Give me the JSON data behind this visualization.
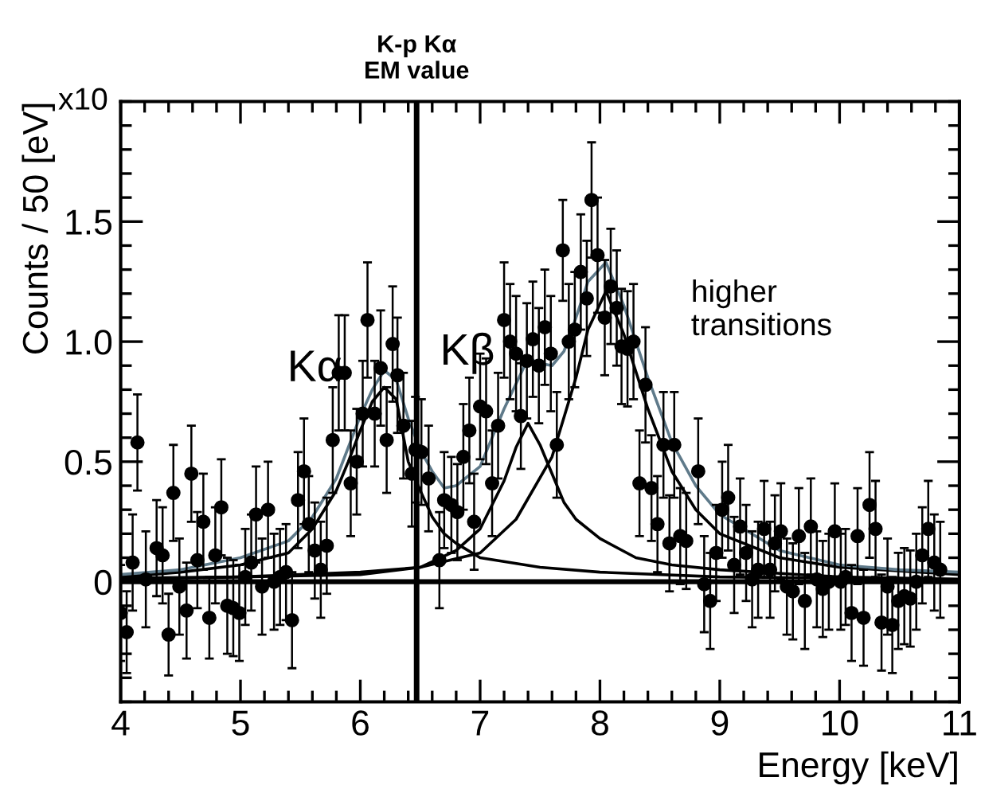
{
  "chart_data": {
    "type": "scatter",
    "xlabel": "Energy [keV]",
    "ylabel": "Counts / 50 [eV]",
    "xlim": [
      4,
      11
    ],
    "ylim": [
      -0.5,
      2.0
    ],
    "xticks": [
      4,
      5,
      6,
      7,
      8,
      9,
      10,
      11
    ],
    "yticks": [
      0,
      0.5,
      {
        "value": 1.0,
        "label": "1.0"
      },
      1.5
    ],
    "grid": false,
    "legend": false,
    "annotations": [
      "x10",
      {
        "text": "Kα",
        "x": 6.2,
        "y": 0.88
      },
      {
        "text": "Kβ",
        "x": 7.4,
        "y": 0.93
      },
      "higher\ntransitions"
    ],
    "ref_lines": [
      {
        "axis": "y",
        "value": 0,
        "color": "#000000"
      },
      {
        "axis": "x",
        "value": 6.47,
        "label": "K-p Kα\nEM value",
        "color": "#000000"
      }
    ],
    "series": [
      {
        "marker": "circle",
        "color": "#000000",
        "x": [
          4.0,
          4.05,
          4.1,
          4.14,
          4.21,
          4.3,
          4.35,
          4.4,
          4.44,
          4.49,
          4.55,
          4.59,
          4.64,
          4.69,
          4.74,
          4.79,
          4.84,
          4.89,
          4.94,
          4.99,
          5.04,
          5.09,
          5.13,
          5.18,
          5.23,
          5.28,
          5.33,
          5.38,
          5.43,
          5.48,
          5.53,
          5.57,
          5.62,
          5.67,
          5.72,
          5.77,
          5.82,
          5.87,
          5.92,
          5.97,
          6.02,
          6.06,
          6.12,
          6.17,
          6.22,
          6.27,
          6.31,
          6.36,
          6.43,
          6.46,
          6.51,
          6.57,
          6.66,
          6.7,
          6.76,
          6.81,
          6.86,
          6.91,
          6.95,
          7.0,
          7.05,
          7.1,
          7.15,
          7.2,
          7.25,
          7.3,
          7.34,
          7.39,
          7.44,
          7.49,
          7.54,
          7.59,
          7.64,
          7.69,
          7.74,
          7.79,
          7.84,
          7.89,
          7.93,
          7.98,
          8.04,
          8.09,
          8.14,
          8.18,
          8.23,
          8.28,
          8.33,
          8.38,
          8.43,
          8.48,
          8.53,
          8.58,
          8.62,
          8.67,
          8.72,
          8.82,
          8.87,
          8.92,
          8.97,
          9.02,
          9.07,
          9.12,
          9.17,
          9.22,
          9.27,
          9.32,
          9.37,
          9.42,
          9.46,
          9.51,
          9.56,
          9.61,
          9.66,
          9.71,
          9.76,
          9.81,
          9.86,
          9.91,
          9.96,
          10.01,
          10.05,
          10.1,
          10.15,
          10.2,
          10.25,
          10.3,
          10.35,
          10.4,
          10.44,
          10.49,
          10.54,
          10.59,
          10.64,
          10.69,
          10.74,
          10.79,
          10.84
        ],
        "values": [
          -0.13,
          -0.21,
          0.08,
          0.58,
          0.01,
          0.14,
          0.11,
          -0.22,
          0.37,
          -0.02,
          -0.12,
          0.45,
          0.09,
          0.25,
          -0.15,
          0.11,
          0.31,
          -0.1,
          -0.11,
          -0.13,
          0.02,
          0.08,
          0.28,
          -0.02,
          0.3,
          0.0,
          0.02,
          0.04,
          -0.16,
          0.34,
          0.46,
          0.24,
          0.13,
          0.05,
          0.15,
          0.59,
          0.87,
          0.87,
          0.41,
          0.5,
          0.7,
          1.09,
          0.7,
          0.89,
          0.59,
          0.99,
          0.86,
          0.65,
          0.45,
          0.55,
          0.54,
          0.43,
          0.09,
          0.34,
          0.32,
          0.29,
          0.52,
          0.63,
          0.25,
          0.73,
          0.71,
          0.41,
          0.65,
          1.09,
          1.0,
          0.95,
          0.69,
          0.92,
          1.01,
          0.9,
          1.06,
          0.95,
          0.57,
          1.38,
          1.0,
          1.05,
          1.29,
          1.18,
          1.59,
          1.36,
          1.1,
          1.23,
          1.14,
          0.98,
          0.97,
          1.0,
          0.41,
          0.82,
          0.39,
          0.24,
          0.57,
          0.16,
          0.57,
          0.19,
          0.17,
          0.46,
          -0.01,
          -0.08,
          0.12,
          0.3,
          0.35,
          0.07,
          0.23,
          0.12,
          0.01,
          0.05,
          0.22,
          0.05,
          0.16,
          0.21,
          -0.02,
          -0.04,
          0.19,
          -0.08,
          0.23,
          0.01,
          -0.03,
          0.0,
          0.21,
          0.0,
          0.02,
          -0.13,
          0.19,
          -0.15,
          0.32,
          0.22,
          -0.17,
          -0.02,
          -0.18,
          -0.08,
          -0.06,
          -0.07,
          0.0,
          0.11,
          0.22,
          0.08,
          0.05
        ],
        "errors": [
          0.2,
          0.17,
          0.2,
          0.2,
          0.2,
          0.2,
          0.2,
          0.17,
          0.2,
          0.2,
          0.2,
          0.2,
          0.2,
          0.2,
          0.17,
          0.2,
          0.2,
          0.2,
          0.2,
          0.2,
          0.2,
          0.2,
          0.2,
          0.2,
          0.2,
          0.2,
          0.2,
          0.2,
          0.2,
          0.2,
          0.22,
          0.2,
          0.2,
          0.2,
          0.2,
          0.22,
          0.24,
          0.24,
          0.22,
          0.22,
          0.22,
          0.24,
          0.22,
          0.24,
          0.22,
          0.24,
          0.24,
          0.22,
          0.22,
          0.22,
          0.22,
          0.22,
          0.2,
          0.2,
          0.2,
          0.2,
          0.22,
          0.22,
          0.2,
          0.22,
          0.22,
          0.22,
          0.22,
          0.24,
          0.24,
          0.24,
          0.22,
          0.24,
          0.24,
          0.24,
          0.24,
          0.24,
          0.22,
          0.21,
          0.24,
          0.24,
          0.24,
          0.24,
          0.24,
          0.24,
          0.24,
          0.24,
          0.24,
          0.24,
          0.24,
          0.24,
          0.22,
          0.24,
          0.22,
          0.2,
          0.22,
          0.2,
          0.22,
          0.2,
          0.2,
          0.22,
          0.2,
          0.2,
          0.2,
          0.2,
          0.22,
          0.2,
          0.2,
          0.2,
          0.2,
          0.2,
          0.2,
          0.2,
          0.2,
          0.2,
          0.2,
          0.2,
          0.2,
          0.2,
          0.2,
          0.2,
          0.2,
          0.2,
          0.2,
          0.2,
          0.2,
          0.2,
          0.2,
          0.2,
          0.22,
          0.2,
          0.2,
          0.2,
          0.2,
          0.2,
          0.2,
          0.2,
          0.2,
          0.2,
          0.2,
          0.2,
          0.2
        ]
      },
      {
        "type": "line",
        "color": "#000000",
        "x": [
          4.0,
          4.5,
          5.0,
          5.4,
          5.6,
          5.8,
          5.9,
          6.0,
          6.1,
          6.2,
          6.3,
          6.4,
          6.5,
          6.6,
          6.7,
          6.8,
          7.0,
          7.5,
          8.0,
          9.0,
          10.0,
          11.0
        ],
        "values": [
          0.02,
          0.04,
          0.07,
          0.12,
          0.22,
          0.38,
          0.5,
          0.63,
          0.75,
          0.81,
          0.76,
          0.5,
          0.38,
          0.27,
          0.2,
          0.16,
          0.1,
          0.06,
          0.04,
          0.02,
          0.015,
          0.01
        ]
      },
      {
        "type": "line",
        "color": "#000000",
        "x": [
          4.0,
          5.0,
          6.0,
          6.5,
          6.8,
          7.0,
          7.2,
          7.3,
          7.4,
          7.5,
          7.6,
          7.7,
          7.8,
          8.0,
          8.3,
          8.6,
          9.0,
          10.0,
          11.0
        ],
        "values": [
          0.015,
          0.02,
          0.03,
          0.06,
          0.13,
          0.22,
          0.42,
          0.56,
          0.66,
          0.57,
          0.45,
          0.33,
          0.26,
          0.18,
          0.1,
          0.07,
          0.05,
          0.02,
          0.01
        ]
      },
      {
        "type": "line",
        "color": "#000000",
        "x": [
          4.0,
          5.0,
          6.0,
          6.5,
          7.0,
          7.3,
          7.6,
          7.8,
          7.9,
          8.05,
          8.2,
          8.4,
          8.6,
          8.8,
          9.0,
          9.5,
          10.0,
          11.0
        ],
        "values": [
          0.01,
          0.02,
          0.04,
          0.06,
          0.12,
          0.26,
          0.52,
          0.85,
          1.05,
          1.21,
          1.03,
          0.72,
          0.46,
          0.3,
          0.2,
          0.1,
          0.06,
          0.03
        ]
      },
      {
        "type": "line",
        "color": "#5f7a8a",
        "x": [
          4.0,
          4.5,
          5.0,
          5.4,
          5.6,
          5.8,
          6.0,
          6.1,
          6.2,
          6.3,
          6.4,
          6.5,
          6.6,
          6.7,
          6.8,
          7.0,
          7.2,
          7.4,
          7.5,
          7.6,
          7.7,
          7.8,
          7.9,
          8.05,
          8.2,
          8.4,
          8.6,
          8.8,
          9.0,
          9.5,
          10.0,
          10.5,
          11.0
        ],
        "values": [
          0.03,
          0.05,
          0.1,
          0.17,
          0.27,
          0.43,
          0.69,
          0.8,
          0.88,
          0.84,
          0.68,
          0.55,
          0.46,
          0.39,
          0.4,
          0.48,
          0.72,
          0.93,
          0.91,
          0.9,
          0.96,
          1.1,
          1.25,
          1.33,
          1.15,
          0.85,
          0.58,
          0.4,
          0.28,
          0.13,
          0.07,
          0.05,
          0.04
        ]
      }
    ]
  }
}
